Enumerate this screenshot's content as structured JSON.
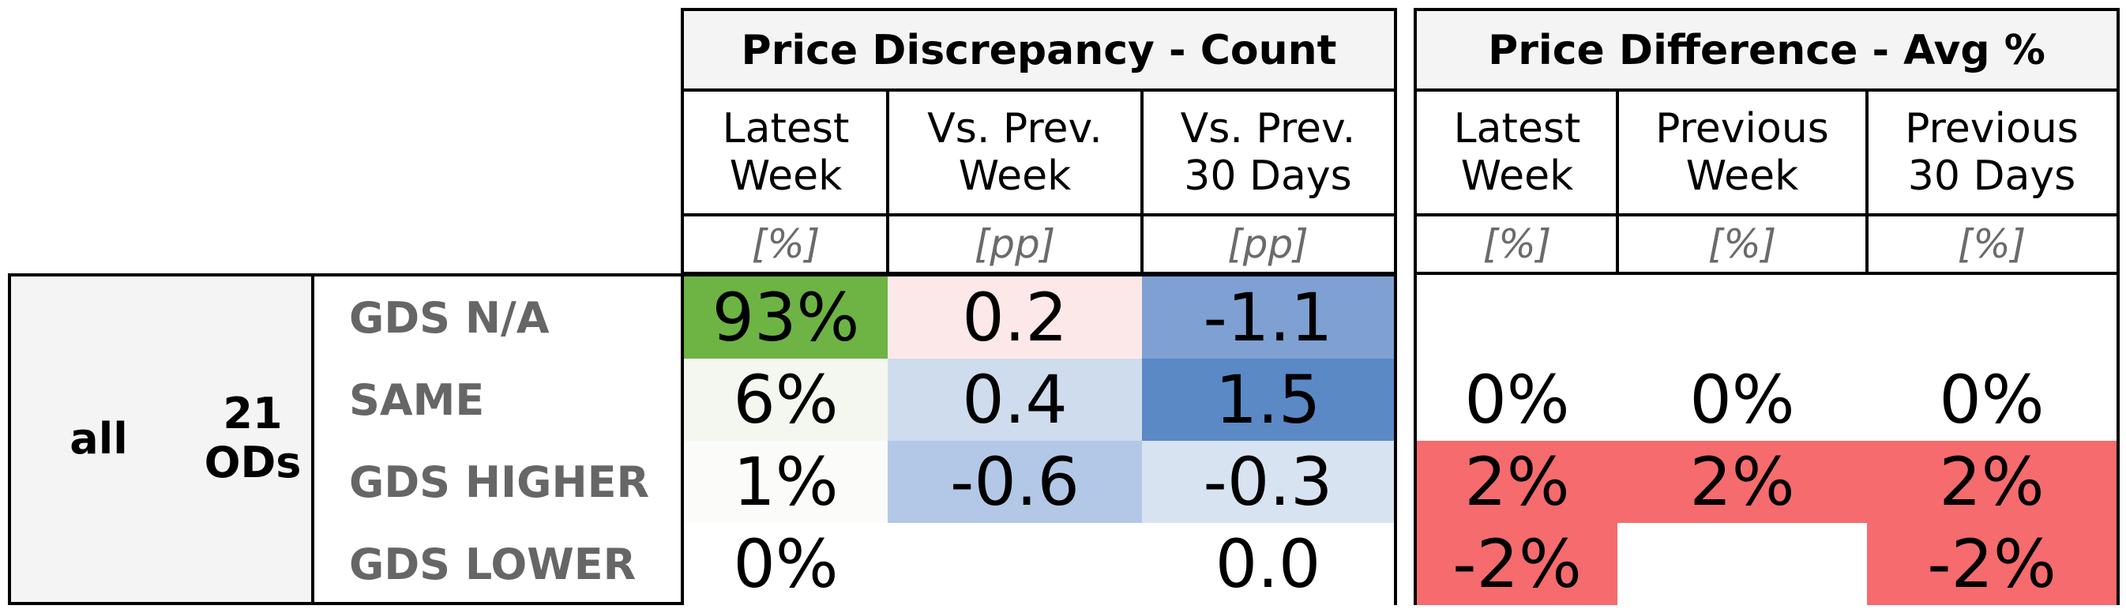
{
  "chart_data": {
    "type": "table",
    "row_group": {
      "segment": "all",
      "ods": "21\nODs"
    },
    "row_labels": [
      "GDS N/A",
      "SAME",
      "GDS HIGHER",
      "GDS LOWER"
    ],
    "panels": [
      {
        "title": "Price Discrepancy - Count",
        "columns": [
          {
            "header": "Latest\nWeek",
            "unit": "[%]",
            "values": [
              "93%",
              "6%",
              "1%",
              "0%"
            ],
            "colors": [
              "#6db444",
              "#f4f6f0",
              "#fbfbf9",
              "#ffffff"
            ]
          },
          {
            "header": "Vs. Prev.\nWeek",
            "unit": "[pp]",
            "values": [
              "0.2",
              "0.4",
              "-0.6",
              ""
            ],
            "colors": [
              "#fce8e8",
              "#cfdcee",
              "#b3c8e6",
              "#ffffff"
            ]
          },
          {
            "header": "Vs. Prev.\n30 Days",
            "unit": "[pp]",
            "values": [
              "-1.1",
              "1.5",
              "-0.3",
              "0.0"
            ],
            "colors": [
              "#7fa0d2",
              "#5b89c6",
              "#d8e3f1",
              "#ffffff"
            ]
          }
        ]
      },
      {
        "title": "Price Difference - Avg %",
        "columns": [
          {
            "header": "Latest\nWeek",
            "unit": "[%]",
            "values": [
              "",
              "0%",
              "2%",
              "-2%"
            ],
            "colors": [
              "#ffffff",
              "#ffffff",
              "#f56b6e",
              "#f56b6e"
            ]
          },
          {
            "header": "Previous\nWeek",
            "unit": "[%]",
            "values": [
              "",
              "0%",
              "2%",
              ""
            ],
            "colors": [
              "#ffffff",
              "#ffffff",
              "#f56b6e",
              "#ffffff"
            ]
          },
          {
            "header": "Previous\n30 Days",
            "unit": "[%]",
            "values": [
              "",
              "0%",
              "2%",
              "-2%"
            ],
            "colors": [
              "#ffffff",
              "#ffffff",
              "#f56b6e",
              "#f56b6e"
            ]
          }
        ]
      }
    ]
  }
}
